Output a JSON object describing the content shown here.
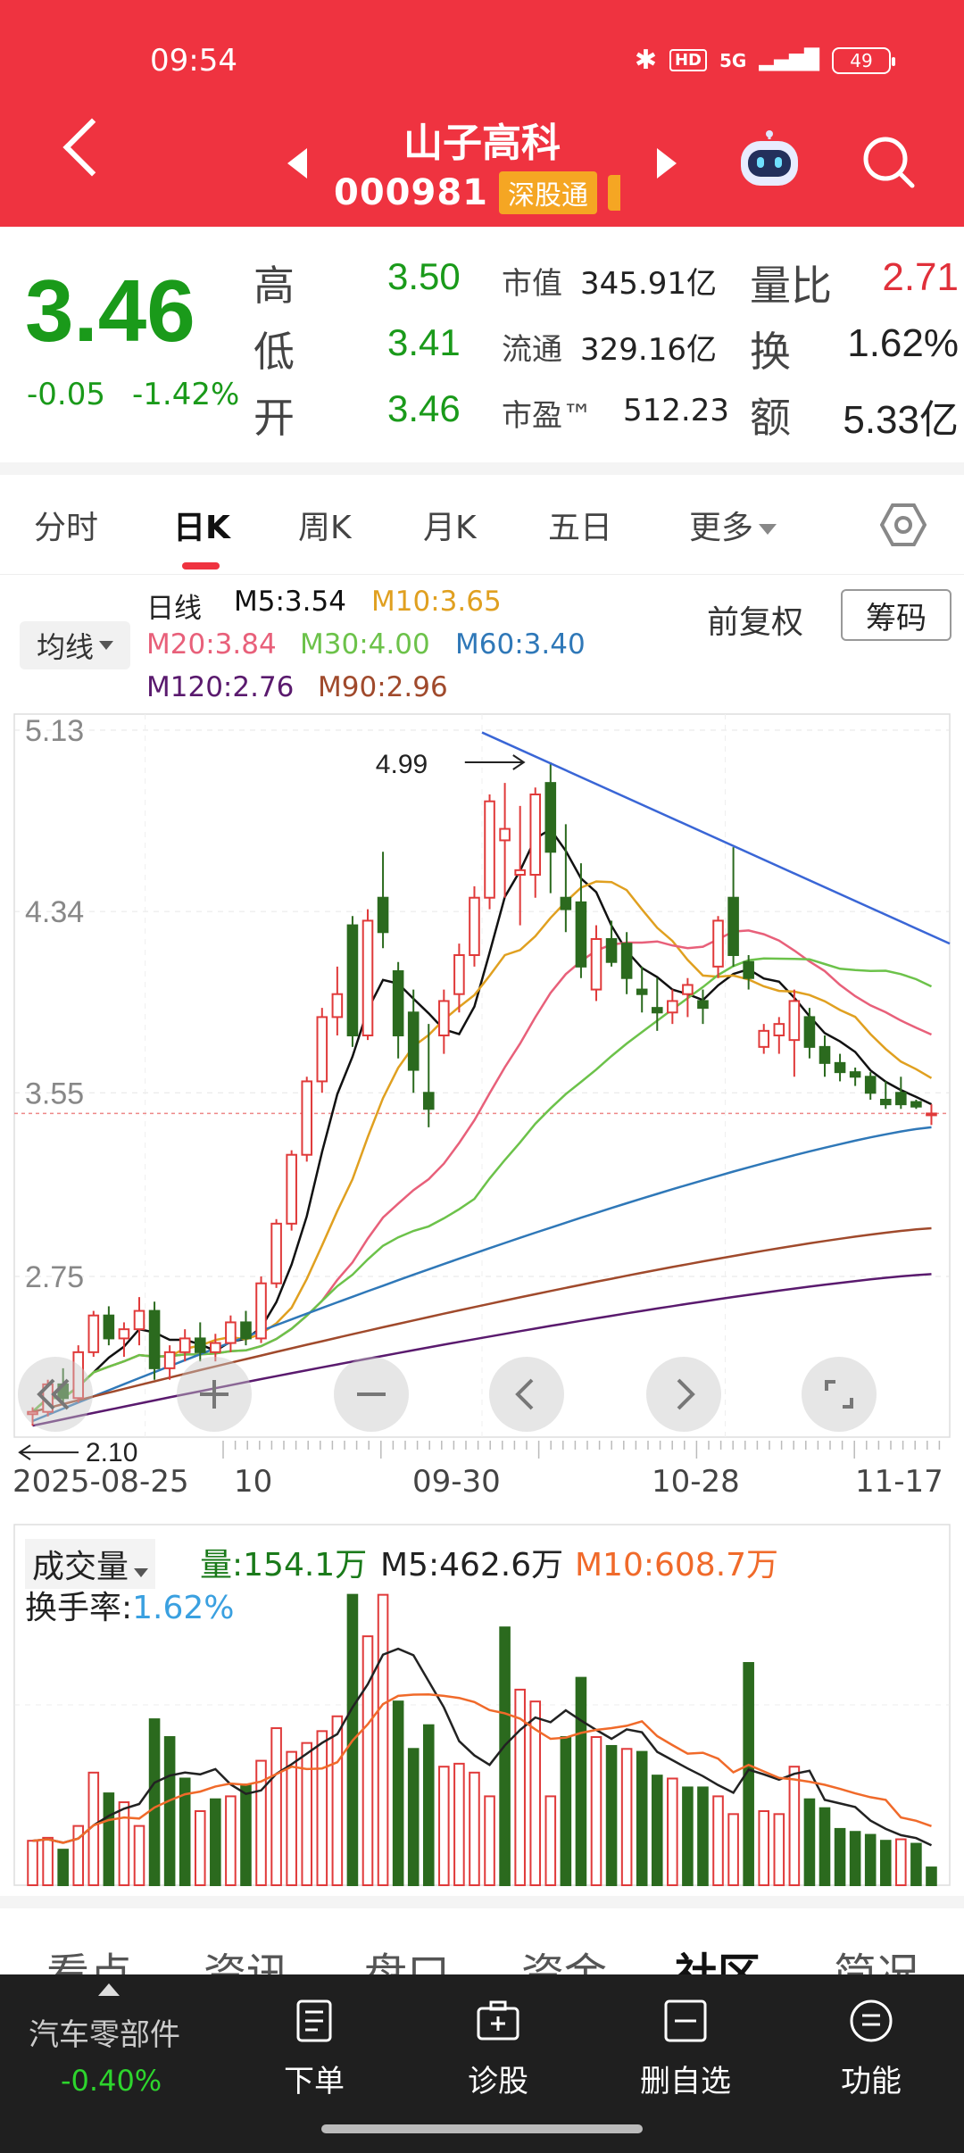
{
  "status": {
    "time": "09:54",
    "battery": "49",
    "hd": "HD",
    "signal": "5G"
  },
  "header": {
    "stock_name": "山子高科",
    "stock_code": "000981",
    "tag": "深股通"
  },
  "quote": {
    "price": "3.46",
    "change": "-0.05",
    "change_pct": "-1.42%",
    "high_label": "高",
    "high": "3.50",
    "low_label": "低",
    "low": "3.41",
    "open_label": "开",
    "open": "3.46",
    "mcap_label": "市值",
    "mcap": "345.91亿",
    "float_label": "流通",
    "float": "329.16亿",
    "pe_label": "市盈™",
    "pe": "512.23",
    "vr_label": "量比",
    "vr": "2.71",
    "turnover_label": "换",
    "turnover": "1.62%",
    "amount_label": "额",
    "amount": "5.33亿"
  },
  "tabs": [
    "分时",
    "日K",
    "周K",
    "月K",
    "五日",
    "更多"
  ],
  "legend": {
    "ma_button": "均线",
    "period": "日线",
    "m5": "M5:3.54",
    "m10": "M10:3.65",
    "m20": "M20:3.84",
    "m30": "M30:4.00",
    "m60": "M60:3.40",
    "m120": "M120:2.76",
    "m90": "M90:2.96",
    "fq": "前复权",
    "cm": "筹码",
    "colors": {
      "m5": "#111111",
      "m10": "#e0a020",
      "m20": "#e8607a",
      "m30": "#6cc24a",
      "m60": "#2f78b8",
      "m120": "#5a1a6e",
      "m90": "#a04a2c"
    }
  },
  "chart_data": [
    {
      "type": "candlestick",
      "title": "",
      "y_ticks": [
        "5.13",
        "4.34",
        "3.55",
        "2.75"
      ],
      "ylim": [
        2.05,
        5.2
      ],
      "x_dates": [
        "2025-08-25",
        "10",
        "09-30",
        "10-28",
        "11-17"
      ],
      "annotations": {
        "max_label": "4.99",
        "min_label": "2.10",
        "current_price_line": 3.46
      },
      "candles": [
        [
          2.15,
          2.18,
          2.1,
          2.16
        ],
        [
          2.16,
          2.3,
          2.14,
          2.28
        ],
        [
          2.28,
          2.35,
          2.2,
          2.22
        ],
        [
          2.22,
          2.45,
          2.2,
          2.42
        ],
        [
          2.42,
          2.6,
          2.4,
          2.58
        ],
        [
          2.58,
          2.62,
          2.45,
          2.48
        ],
        [
          2.48,
          2.55,
          2.4,
          2.52
        ],
        [
          2.52,
          2.66,
          2.45,
          2.6
        ],
        [
          2.6,
          2.64,
          2.3,
          2.35
        ],
        [
          2.35,
          2.45,
          2.3,
          2.42
        ],
        [
          2.42,
          2.52,
          2.38,
          2.48
        ],
        [
          2.48,
          2.55,
          2.38,
          2.42
        ],
        [
          2.42,
          2.5,
          2.38,
          2.46
        ],
        [
          2.46,
          2.58,
          2.42,
          2.55
        ],
        [
          2.55,
          2.6,
          2.45,
          2.48
        ],
        [
          2.48,
          2.75,
          2.46,
          2.72
        ],
        [
          2.72,
          3.0,
          2.7,
          2.98
        ],
        [
          2.98,
          3.3,
          2.95,
          3.28
        ],
        [
          3.28,
          3.62,
          3.25,
          3.6
        ],
        [
          3.6,
          3.92,
          3.55,
          3.88
        ],
        [
          3.88,
          4.1,
          3.8,
          3.98
        ],
        [
          4.28,
          4.32,
          3.75,
          3.8
        ],
        [
          3.8,
          4.35,
          3.78,
          4.3
        ],
        [
          4.4,
          4.6,
          4.18,
          4.25
        ],
        [
          4.08,
          4.12,
          3.7,
          3.8
        ],
        [
          3.9,
          4.0,
          3.55,
          3.65
        ],
        [
          3.55,
          3.85,
          3.4,
          3.48
        ],
        [
          3.8,
          4.0,
          3.72,
          3.95
        ],
        [
          3.98,
          4.2,
          3.9,
          4.15
        ],
        [
          4.15,
          4.45,
          4.1,
          4.4
        ],
        [
          4.4,
          4.85,
          4.35,
          4.82
        ],
        [
          4.65,
          4.9,
          4.4,
          4.7
        ],
        [
          4.5,
          4.8,
          4.28,
          4.52
        ],
        [
          4.5,
          4.88,
          4.4,
          4.85
        ],
        [
          4.9,
          4.99,
          4.42,
          4.6
        ],
        [
          4.4,
          4.72,
          4.25,
          4.35
        ],
        [
          4.38,
          4.55,
          4.05,
          4.1
        ],
        [
          4.0,
          4.28,
          3.95,
          4.22
        ],
        [
          4.22,
          4.3,
          4.1,
          4.12
        ],
        [
          4.2,
          4.25,
          3.98,
          4.05
        ],
        [
          4.0,
          4.1,
          3.9,
          3.98
        ],
        [
          3.92,
          4.05,
          3.82,
          3.9
        ],
        [
          3.9,
          4.0,
          3.85,
          3.95
        ],
        [
          3.98,
          4.05,
          3.88,
          4.02
        ],
        [
          3.95,
          4.0,
          3.85,
          3.92
        ],
        [
          4.1,
          4.32,
          4.05,
          4.3
        ],
        [
          4.4,
          4.62,
          4.1,
          4.15
        ],
        [
          4.12,
          4.15,
          4.0,
          4.05
        ],
        [
          3.75,
          3.85,
          3.72,
          3.82
        ],
        [
          3.8,
          3.88,
          3.72,
          3.85
        ],
        [
          3.78,
          4.0,
          3.62,
          3.95
        ],
        [
          3.88,
          3.92,
          3.7,
          3.75
        ],
        [
          3.75,
          3.8,
          3.62,
          3.68
        ],
        [
          3.68,
          3.72,
          3.6,
          3.64
        ],
        [
          3.64,
          3.66,
          3.58,
          3.62
        ],
        [
          3.62,
          3.64,
          3.52,
          3.55
        ],
        [
          3.52,
          3.6,
          3.48,
          3.5
        ],
        [
          3.55,
          3.62,
          3.48,
          3.5
        ],
        [
          3.51,
          3.52,
          3.48,
          3.49
        ],
        [
          3.46,
          3.5,
          3.41,
          3.46
        ]
      ],
      "trend_line": {
        "from": [
          29.5,
          5.12
        ],
        "to": [
          61.5,
          4.2
        ]
      }
    },
    {
      "type": "bar",
      "title": "",
      "legend": [
        "成交量",
        "量:154.1万",
        "M5:462.6万",
        "M10:608.7万"
      ],
      "turnover_label": "换手率:",
      "turnover_value": "1.62%",
      "values": [
        150,
        160,
        120,
        200,
        380,
        310,
        280,
        200,
        560,
        500,
        360,
        250,
        290,
        300,
        340,
        420,
        530,
        450,
        480,
        520,
        570,
        980,
        840,
        980,
        620,
        460,
        540,
        400,
        410,
        380,
        300,
        870,
        660,
        620,
        300,
        500,
        700,
        500,
        470,
        460,
        450,
        370,
        360,
        330,
        330,
        300,
        240,
        750,
        250,
        240,
        400,
        290,
        260,
        190,
        180,
        170,
        150,
        155,
        140,
        60
      ],
      "down_days": [
        2,
        5,
        8,
        9,
        10,
        12,
        14,
        21,
        24,
        25,
        26,
        31,
        35,
        36,
        38,
        40,
        41,
        43,
        44,
        47,
        51,
        52,
        53,
        54,
        55,
        56,
        58,
        59
      ]
    }
  ],
  "subtabs": [
    "看点",
    "资讯",
    "盘口",
    "资金",
    "社区",
    "简况"
  ],
  "bottom": {
    "sector": "汽车零部件",
    "sector_pct": "-0.40%",
    "items": [
      "下单",
      "诊股",
      "删自选",
      "功能"
    ]
  }
}
